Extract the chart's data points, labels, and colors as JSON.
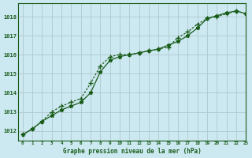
{
  "title": "Graphe pression niveau de la mer (hPa)",
  "background_color": "#cce8f0",
  "grid_color": "#b0c8d0",
  "line_color": "#1a5c1a",
  "xlim": [
    -0.5,
    23
  ],
  "ylim": [
    1011.5,
    1018.7
  ],
  "yticks": [
    1012,
    1013,
    1014,
    1015,
    1016,
    1017,
    1018
  ],
  "xticks": [
    0,
    1,
    2,
    3,
    4,
    5,
    6,
    7,
    8,
    9,
    10,
    11,
    12,
    13,
    14,
    15,
    16,
    17,
    18,
    19,
    20,
    21,
    22,
    23
  ],
  "series1_x": [
    0,
    1,
    2,
    3,
    4,
    5,
    6,
    7,
    8,
    9,
    10,
    11,
    12,
    13,
    14,
    15,
    16,
    17,
    18,
    19,
    20,
    21,
    22,
    23
  ],
  "series1_y": [
    1011.8,
    1012.1,
    1012.5,
    1013.0,
    1013.3,
    1013.5,
    1013.7,
    1014.5,
    1015.4,
    1015.9,
    1016.0,
    1016.0,
    1016.1,
    1016.2,
    1016.3,
    1016.4,
    1016.9,
    1017.2,
    1017.6,
    1017.9,
    1018.0,
    1018.15,
    1018.3,
    1018.15
  ],
  "series2_x": [
    0,
    1,
    2,
    3,
    4,
    5,
    6,
    7,
    8,
    9,
    10,
    11,
    12,
    13,
    14,
    15,
    16,
    17,
    18,
    19,
    20,
    21,
    22,
    23
  ],
  "series2_y": [
    1011.8,
    1012.1,
    1012.5,
    1012.8,
    1013.1,
    1013.3,
    1013.5,
    1014.0,
    1015.1,
    1015.7,
    1015.9,
    1016.0,
    1016.1,
    1016.2,
    1016.3,
    1016.5,
    1016.7,
    1017.0,
    1017.4,
    1017.9,
    1018.05,
    1018.2,
    1018.3,
    1018.15
  ]
}
